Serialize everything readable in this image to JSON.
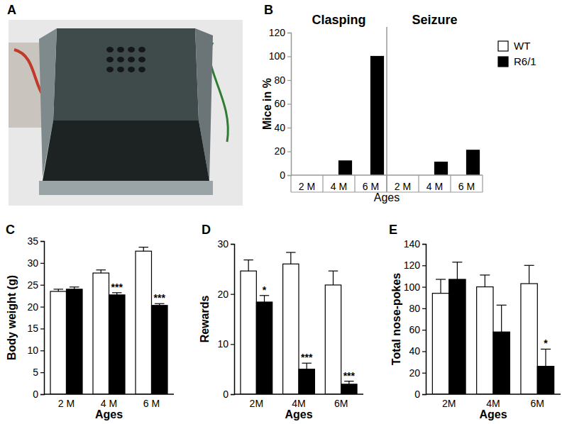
{
  "chart_data": [
    {
      "type": "image",
      "label": "A"
    },
    {
      "type": "bar",
      "label": "B",
      "ylabel": "Mice in %",
      "xlabel": "Ages",
      "groups": [
        "Clasping",
        "Seizure"
      ],
      "categories": [
        "2 M",
        "4 M",
        "6 M",
        "2 M",
        "4 M",
        "6 M"
      ],
      "ylim": [
        0,
        120
      ],
      "yticks": [
        0,
        20,
        40,
        60,
        80,
        100,
        120
      ],
      "legend": "right",
      "series": [
        {
          "name": "WT",
          "color": "#ffffff",
          "values": [
            0,
            0,
            0,
            0,
            0,
            0
          ]
        },
        {
          "name": "R6/1",
          "color": "#000000",
          "values": [
            0,
            12,
            100,
            0,
            11,
            21
          ]
        }
      ]
    },
    {
      "type": "bar",
      "label": "C",
      "ylabel": "Body weight (g)",
      "xlabel": "Ages",
      "categories": [
        "2 M",
        "4 M",
        "6 M"
      ],
      "ylim": [
        0,
        35
      ],
      "yticks": [
        0,
        5,
        10,
        15,
        20,
        25,
        30,
        35
      ],
      "series": [
        {
          "name": "WT",
          "color": "#ffffff",
          "values": [
            23.5,
            27.7,
            32.7
          ],
          "errors": [
            0.5,
            0.7,
            0.9
          ],
          "significance": [
            null,
            null,
            null
          ]
        },
        {
          "name": "R6/1",
          "color": "#000000",
          "values": [
            24,
            22.7,
            20.3
          ],
          "errors": [
            0.5,
            0.5,
            0.4
          ],
          "significance": [
            null,
            "***",
            "***"
          ]
        }
      ]
    },
    {
      "type": "bar",
      "label": "D",
      "ylabel": "Rewards",
      "xlabel": "Ages",
      "categories": [
        "2M",
        "4M",
        "6M"
      ],
      "ylim": [
        0,
        30
      ],
      "yticks": [
        0,
        10,
        20,
        30
      ],
      "series": [
        {
          "name": "WT",
          "color": "#ffffff",
          "values": [
            24.6,
            26,
            21.8
          ],
          "errors": [
            2.2,
            2.3,
            2.8
          ],
          "significance": [
            null,
            null,
            null
          ]
        },
        {
          "name": "R6/1",
          "color": "#000000",
          "values": [
            18.4,
            5,
            2
          ],
          "errors": [
            1.3,
            1.2,
            0.6
          ],
          "significance": [
            "*",
            "***",
            "***"
          ]
        }
      ]
    },
    {
      "type": "bar",
      "label": "E",
      "ylabel": "Total nose-pokes",
      "xlabel": "Ages",
      "categories": [
        "2M",
        "4M",
        "6M"
      ],
      "ylim": [
        0,
        140
      ],
      "yticks": [
        0,
        20,
        40,
        60,
        80,
        100,
        120,
        140
      ],
      "series": [
        {
          "name": "WT",
          "color": "#ffffff",
          "values": [
            94,
            100,
            103
          ],
          "errors": [
            13,
            11,
            17
          ],
          "significance": [
            null,
            null,
            null
          ]
        },
        {
          "name": "R6/1",
          "color": "#000000",
          "values": [
            107,
            58,
            26
          ],
          "errors": [
            16,
            25,
            16
          ],
          "significance": [
            null,
            null,
            "*"
          ]
        }
      ]
    }
  ]
}
